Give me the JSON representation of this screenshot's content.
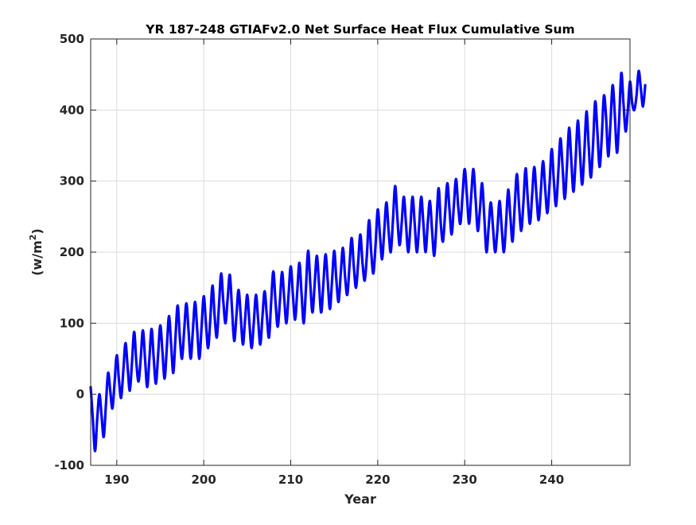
{
  "chart_data": {
    "type": "line",
    "title": "YR 187-248 GTIAFv2.0 Net Surface Heat Flux  Cumulative Sum",
    "xlabel": "Year",
    "ylabel": "(w/m",
    "ylabel_superscript": "2",
    "ylabel_suffix": ")",
    "xlim": [
      187,
      249
    ],
    "ylim": [
      -100,
      500
    ],
    "xticks": [
      190,
      200,
      210,
      220,
      230,
      240
    ],
    "yticks": [
      -100,
      0,
      100,
      200,
      300,
      400,
      500
    ],
    "grid": true,
    "legend": "none",
    "line_color": "#0000ff",
    "series": [
      {
        "sampling": "one point per quarter year (peak, mid-fall, trough, mid-rise), starting at year 187.0",
        "values": [
          10,
          -35,
          -80,
          -35,
          0,
          -30,
          -60,
          -15,
          30,
          5,
          -20,
          17,
          55,
          20,
          -5,
          33,
          72,
          38,
          5,
          45,
          88,
          45,
          18,
          50,
          90,
          50,
          10,
          50,
          92,
          50,
          15,
          55,
          97,
          60,
          22,
          65,
          110,
          70,
          30,
          80,
          125,
          80,
          50,
          90,
          128,
          90,
          50,
          90,
          130,
          90,
          50,
          95,
          138,
          100,
          65,
          105,
          153,
          110,
          80,
          125,
          170,
          130,
          100,
          135,
          168,
          120,
          75,
          110,
          147,
          110,
          70,
          105,
          140,
          100,
          65,
          100,
          140,
          105,
          70,
          110,
          145,
          110,
          80,
          130,
          173,
          130,
          95,
          130,
          172,
          135,
          100,
          140,
          180,
          140,
          105,
          145,
          185,
          140,
          100,
          150,
          202,
          155,
          115,
          155,
          195,
          155,
          115,
          155,
          197,
          160,
          120,
          160,
          202,
          160,
          130,
          170,
          206,
          165,
          140,
          180,
          220,
          180,
          150,
          185,
          225,
          185,
          160,
          195,
          245,
          200,
          170,
          210,
          260,
          225,
          190,
          230,
          270,
          230,
          200,
          245,
          293,
          250,
          210,
          240,
          278,
          240,
          200,
          235,
          278,
          240,
          200,
          235,
          278,
          240,
          200,
          240,
          272,
          230,
          195,
          240,
          290,
          240,
          215,
          255,
          297,
          260,
          225,
          265,
          303,
          265,
          240,
          280,
          317,
          280,
          240,
          280,
          317,
          275,
          230,
          260,
          297,
          250,
          200,
          235,
          270,
          235,
          200,
          230,
          272,
          235,
          200,
          240,
          288,
          250,
          215,
          265,
          310,
          265,
          230,
          270,
          318,
          275,
          240,
          280,
          320,
          280,
          245,
          285,
          328,
          290,
          255,
          295,
          345,
          300,
          265,
          310,
          360,
          320,
          275,
          320,
          375,
          330,
          285,
          330,
          385,
          340,
          295,
          340,
          398,
          350,
          305,
          350,
          412,
          370,
          320,
          360,
          420,
          390,
          335,
          380,
          435,
          395,
          340,
          385,
          452,
          410,
          370,
          400,
          440,
          410,
          400,
          420,
          455,
          430,
          405,
          435
        ]
      }
    ]
  }
}
